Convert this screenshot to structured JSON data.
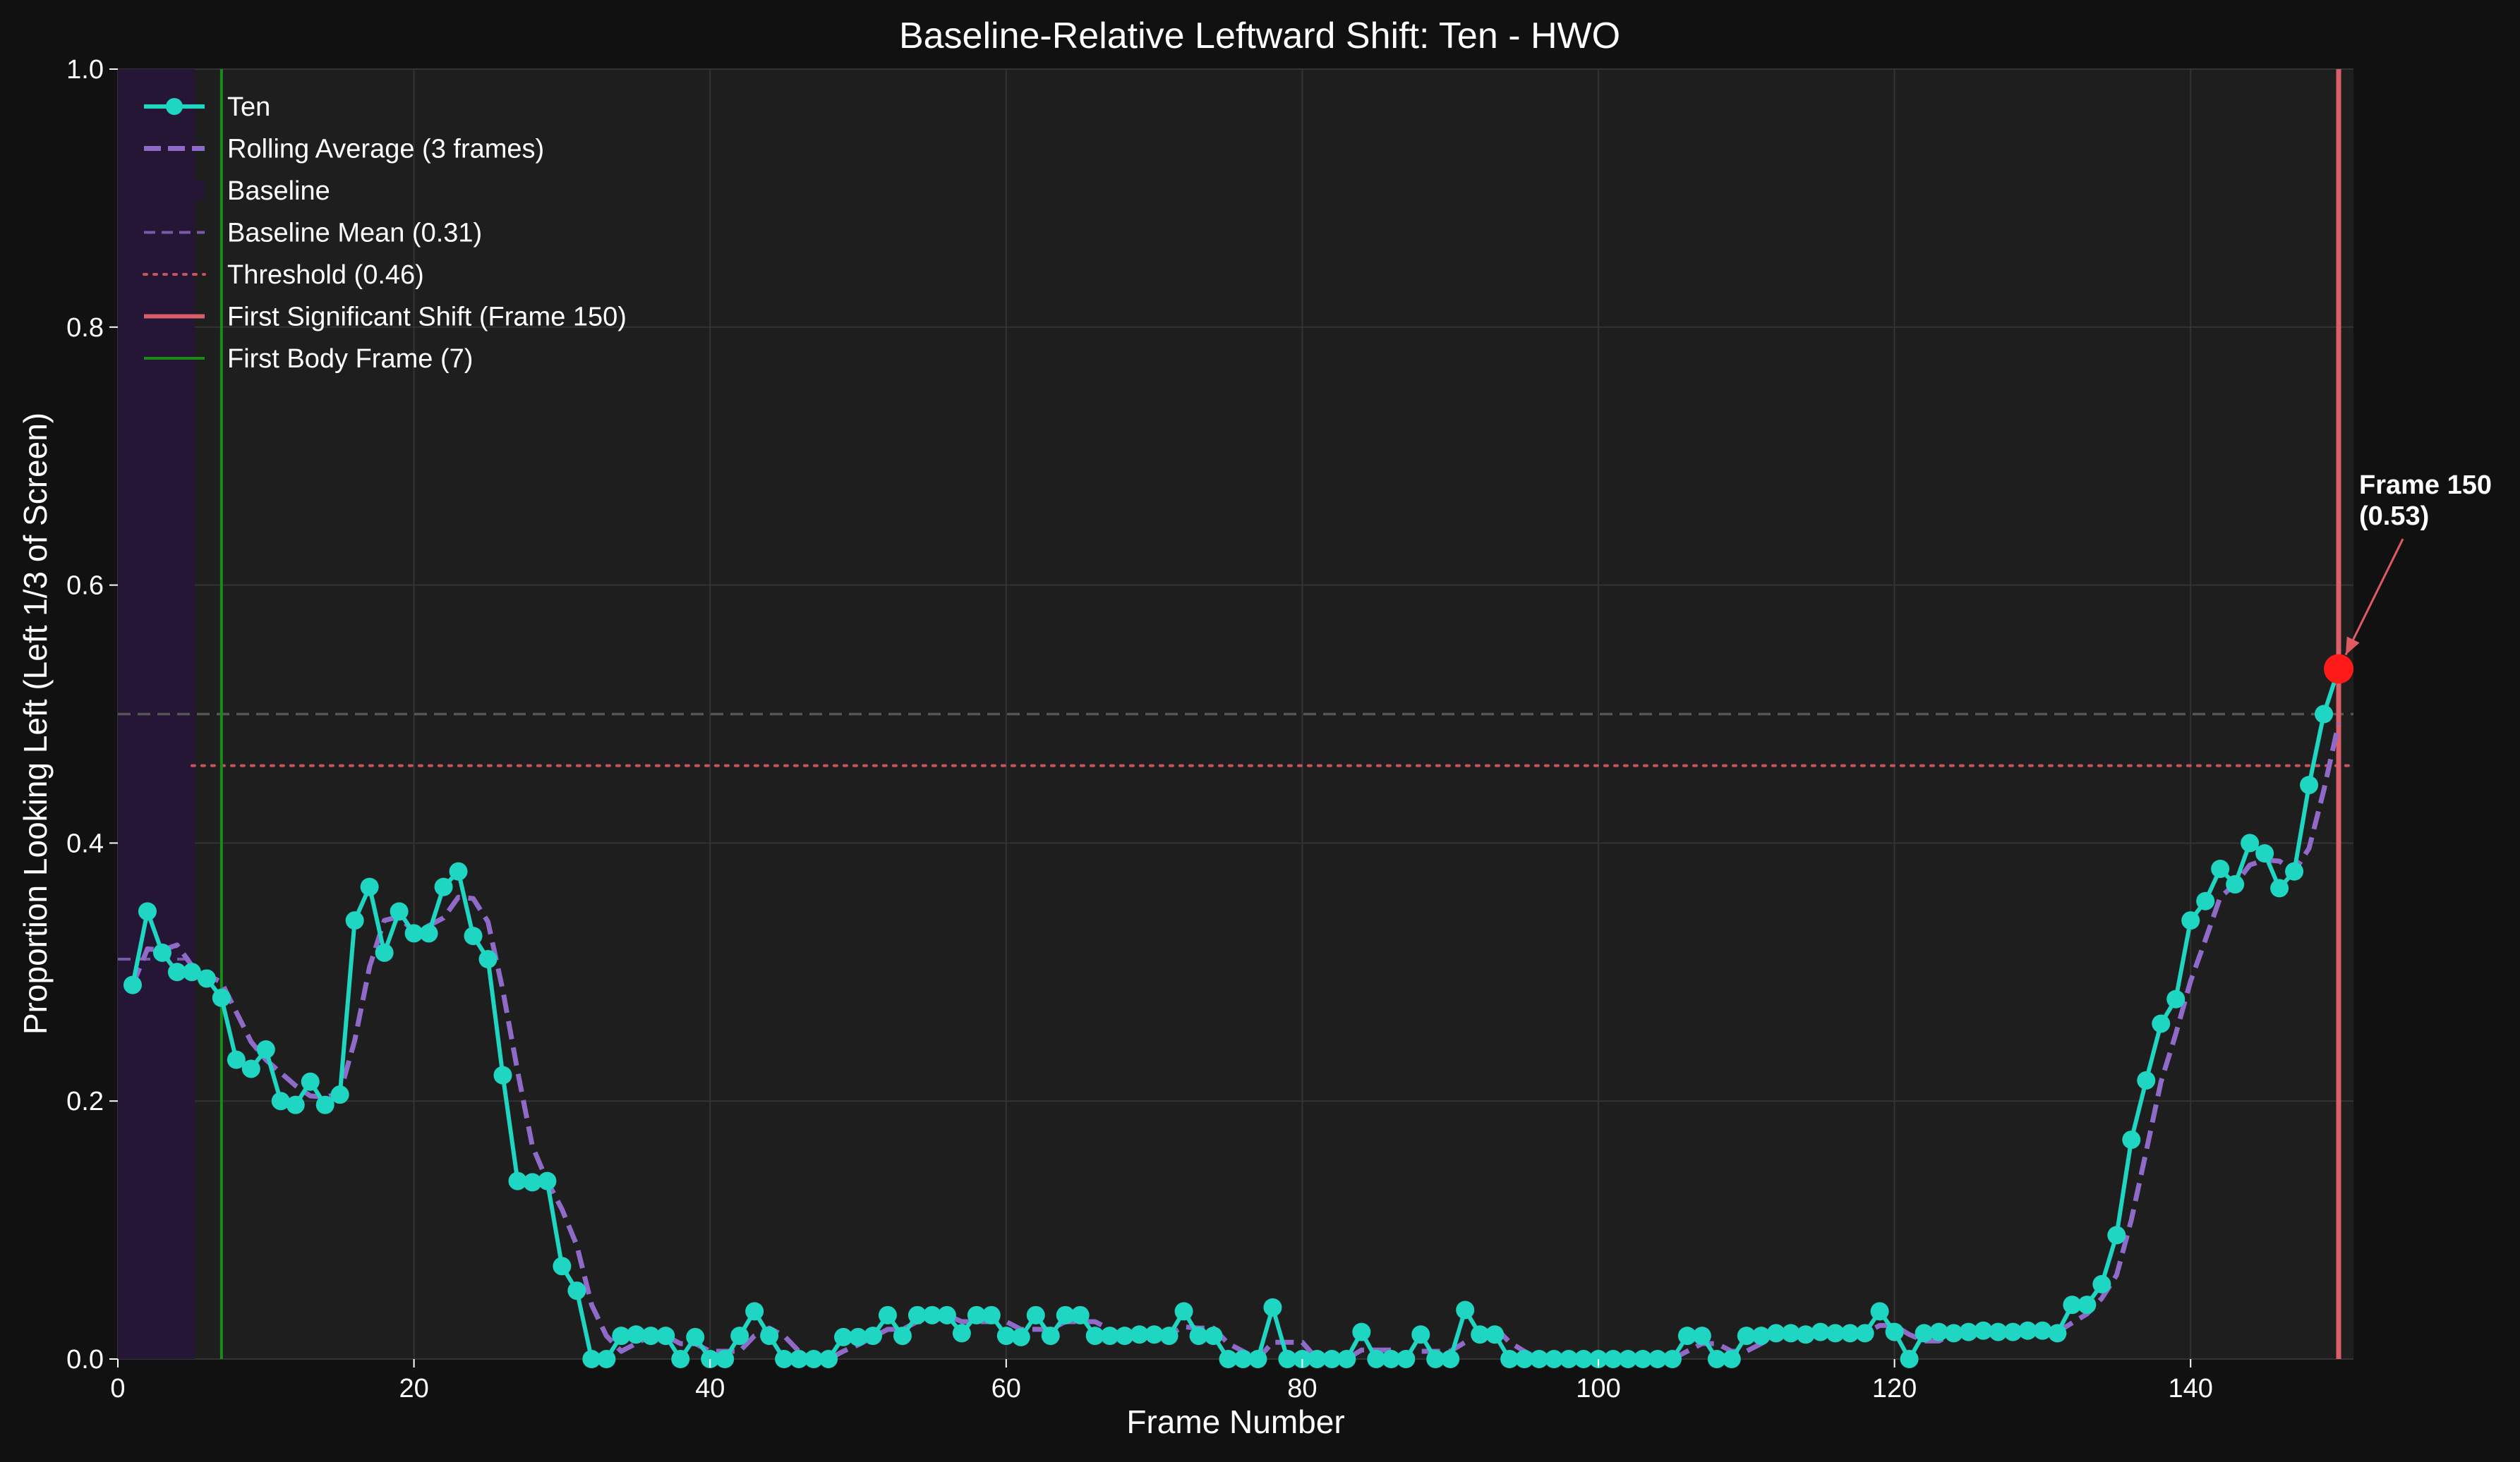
{
  "chart_data": {
    "type": "line",
    "title": "Baseline-Relative Leftward Shift: Ten - HWO",
    "xlabel": "Frame Number",
    "ylabel": "Proportion Looking Left (Left 1/3 of Screen)",
    "xlim": [
      0,
      151
    ],
    "ylim": [
      0,
      1.0
    ],
    "x_ticks": [
      0,
      20,
      40,
      60,
      80,
      100,
      120,
      140
    ],
    "y_ticks": [
      0.0,
      0.2,
      0.4,
      0.6,
      0.8,
      1.0
    ],
    "grid": true,
    "legend_position": "top-left",
    "colors": {
      "background": "#111111",
      "plot_background": "#1e1e1e",
      "grid": "#333333",
      "series": "#1fd6c3",
      "rolling": "#8f6ac8",
      "baseline_band": "#241634",
      "baseline_mean": "#7a5aa8",
      "threshold": "#c7535d",
      "first_shift": "#d9606a",
      "first_body": "#1a8a1a",
      "reference": "#555555",
      "highlight": "#ff1a1a",
      "arrow": "#e05a64"
    },
    "series": [
      {
        "name": "Ten",
        "x": [
          1,
          2,
          3,
          4,
          5,
          6,
          7,
          8,
          9,
          10,
          11,
          12,
          13,
          14,
          15,
          16,
          17,
          18,
          19,
          20,
          21,
          22,
          23,
          24,
          25,
          26,
          27,
          28,
          29,
          30,
          31,
          32,
          33,
          34,
          35,
          36,
          37,
          38,
          39,
          40,
          41,
          42,
          43,
          44,
          45,
          46,
          47,
          48,
          49,
          50,
          51,
          52,
          53,
          54,
          55,
          56,
          57,
          58,
          59,
          60,
          61,
          62,
          63,
          64,
          65,
          66,
          67,
          68,
          69,
          70,
          71,
          72,
          73,
          74,
          75,
          76,
          77,
          78,
          79,
          80,
          81,
          82,
          83,
          84,
          85,
          86,
          87,
          88,
          89,
          90,
          91,
          92,
          93,
          94,
          95,
          96,
          97,
          98,
          99,
          100,
          101,
          102,
          103,
          104,
          105,
          106,
          107,
          108,
          109,
          110,
          111,
          112,
          113,
          114,
          115,
          116,
          117,
          118,
          119,
          120,
          121,
          122,
          123,
          124,
          125,
          126,
          127,
          128,
          129,
          130,
          131,
          132,
          133,
          134,
          135,
          136,
          137,
          138,
          139,
          140,
          141,
          142,
          143,
          144,
          145,
          146,
          147,
          148,
          149,
          150
        ],
        "values": [
          0.29,
          0.347,
          0.315,
          0.3,
          0.3,
          0.295,
          0.28,
          0.232,
          0.225,
          0.24,
          0.2,
          0.197,
          0.215,
          0.197,
          0.205,
          0.34,
          0.366,
          0.315,
          0.347,
          0.33,
          0.33,
          0.366,
          0.378,
          0.328,
          0.31,
          0.22,
          0.138,
          0.137,
          0.138,
          0.072,
          0.053,
          0.0,
          0.0,
          0.018,
          0.019,
          0.018,
          0.018,
          0.0,
          0.017,
          0.0,
          0.0,
          0.018,
          0.037,
          0.018,
          0.0,
          0.0,
          0.0,
          0.0,
          0.017,
          0.017,
          0.018,
          0.034,
          0.018,
          0.034,
          0.034,
          0.034,
          0.02,
          0.034,
          0.034,
          0.018,
          0.017,
          0.034,
          0.018,
          0.034,
          0.034,
          0.018,
          0.018,
          0.018,
          0.019,
          0.019,
          0.018,
          0.037,
          0.018,
          0.018,
          0.0,
          0.0,
          0.0,
          0.04,
          0.0,
          0.0,
          0.0,
          0.0,
          0.0,
          0.021,
          0.0,
          0.0,
          0.0,
          0.019,
          0.0,
          0.0,
          0.038,
          0.019,
          0.019,
          0.0,
          0.0,
          0.0,
          0.0,
          0.0,
          0.0,
          0.0,
          0.0,
          0.0,
          0.0,
          0.0,
          0.0,
          0.018,
          0.018,
          0.0,
          0.0,
          0.018,
          0.018,
          0.02,
          0.02,
          0.019,
          0.021,
          0.02,
          0.02,
          0.02,
          0.037,
          0.021,
          0.0,
          0.02,
          0.021,
          0.02,
          0.021,
          0.022,
          0.021,
          0.021,
          0.022,
          0.022,
          0.02,
          0.042,
          0.042,
          0.058,
          0.096,
          0.17,
          0.216,
          0.26,
          0.279,
          0.34,
          0.355,
          0.38,
          0.368,
          0.4,
          0.392,
          0.365,
          0.378,
          0.445,
          0.5,
          0.535
        ]
      },
      {
        "name": "Rolling Average (3 frames)",
        "style": "dashed",
        "x": [
          1,
          2,
          3,
          4,
          5,
          6,
          7,
          8,
          9,
          10,
          11,
          12,
          13,
          14,
          15,
          16,
          17,
          18,
          19,
          20,
          21,
          22,
          23,
          24,
          25,
          26,
          27,
          28,
          29,
          30,
          31,
          32,
          33,
          34,
          35,
          36,
          37,
          38,
          39,
          40,
          41,
          42,
          43,
          44,
          45,
          46,
          47,
          48,
          49,
          50,
          51,
          52,
          53,
          54,
          55,
          56,
          57,
          58,
          59,
          60,
          61,
          62,
          63,
          64,
          65,
          66,
          67,
          68,
          69,
          70,
          71,
          72,
          73,
          74,
          75,
          76,
          77,
          78,
          79,
          80,
          81,
          82,
          83,
          84,
          85,
          86,
          87,
          88,
          89,
          90,
          91,
          92,
          93,
          94,
          95,
          96,
          97,
          98,
          99,
          100,
          101,
          102,
          103,
          104,
          105,
          106,
          107,
          108,
          109,
          110,
          111,
          112,
          113,
          114,
          115,
          116,
          117,
          118,
          119,
          120,
          121,
          122,
          123,
          124,
          125,
          126,
          127,
          128,
          129,
          130,
          131,
          132,
          133,
          134,
          135,
          136,
          137,
          138,
          139,
          140,
          141,
          142,
          143,
          144,
          145,
          146,
          147,
          148,
          149,
          150
        ],
        "values": [
          0.29,
          0.318,
          0.317,
          0.321,
          0.305,
          0.298,
          0.292,
          0.269,
          0.246,
          0.232,
          0.222,
          0.212,
          0.204,
          0.203,
          0.206,
          0.247,
          0.304,
          0.34,
          0.343,
          0.331,
          0.336,
          0.342,
          0.358,
          0.357,
          0.339,
          0.286,
          0.223,
          0.165,
          0.138,
          0.116,
          0.088,
          0.042,
          0.018,
          0.006,
          0.012,
          0.018,
          0.018,
          0.012,
          0.012,
          0.006,
          0.006,
          0.006,
          0.018,
          0.024,
          0.018,
          0.006,
          0.0,
          0.0,
          0.006,
          0.011,
          0.017,
          0.023,
          0.023,
          0.029,
          0.029,
          0.034,
          0.029,
          0.029,
          0.029,
          0.029,
          0.023,
          0.023,
          0.023,
          0.029,
          0.029,
          0.029,
          0.023,
          0.018,
          0.018,
          0.019,
          0.019,
          0.025,
          0.024,
          0.024,
          0.012,
          0.006,
          0.0,
          0.013,
          0.013,
          0.013,
          0.0,
          0.0,
          0.0,
          0.007,
          0.007,
          0.007,
          0.0,
          0.006,
          0.006,
          0.006,
          0.013,
          0.019,
          0.025,
          0.013,
          0.006,
          0.0,
          0.0,
          0.0,
          0.0,
          0.0,
          0.0,
          0.0,
          0.0,
          0.0,
          0.0,
          0.006,
          0.012,
          0.012,
          0.006,
          0.006,
          0.012,
          0.019,
          0.019,
          0.02,
          0.02,
          0.02,
          0.02,
          0.02,
          0.026,
          0.026,
          0.019,
          0.014,
          0.014,
          0.02,
          0.021,
          0.021,
          0.021,
          0.021,
          0.021,
          0.022,
          0.021,
          0.028,
          0.035,
          0.047,
          0.065,
          0.108,
          0.161,
          0.215,
          0.252,
          0.293,
          0.325,
          0.358,
          0.368,
          0.383,
          0.387,
          0.386,
          0.378,
          0.396,
          0.441,
          0.493
        ]
      }
    ],
    "baseline": {
      "label": "Baseline",
      "x_range": [
        0,
        5.2
      ]
    },
    "baseline_mean": {
      "label": "Baseline Mean (0.31)",
      "value": 0.31,
      "x_range": [
        0,
        5.2
      ]
    },
    "threshold": {
      "label": "Threshold (0.46)",
      "value": 0.46,
      "x_range": [
        5,
        151
      ]
    },
    "reference_line": {
      "value": 0.5
    },
    "first_significant_shift": {
      "label": "First Significant Shift (Frame 150)",
      "frame": 150
    },
    "first_body_frame": {
      "label": "First Body Frame (7)",
      "frame": 7
    },
    "annotation": {
      "line1": "Frame 150",
      "line2": "(0.53)",
      "x": 150,
      "y": 0.535,
      "text_x": 151,
      "text_y": 0.65
    }
  }
}
